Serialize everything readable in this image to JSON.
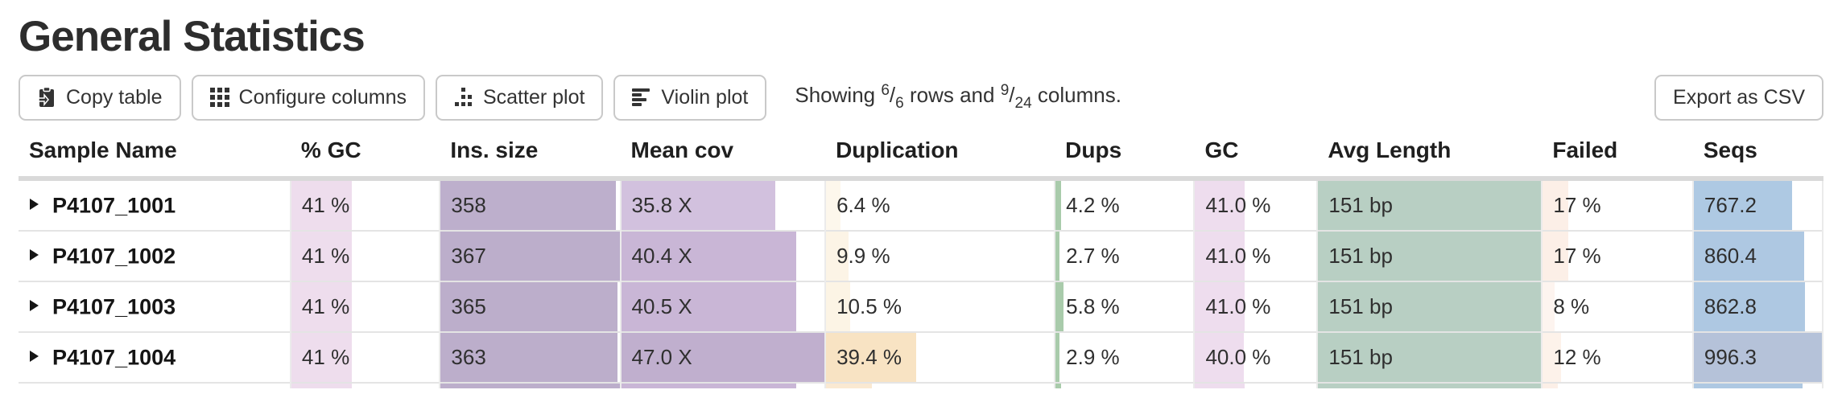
{
  "header": {
    "title": "General Statistics"
  },
  "toolbar": {
    "buttons": [
      {
        "key": "copy-table",
        "label": "Copy table",
        "icon": "clipboard-icon"
      },
      {
        "key": "configure-columns",
        "label": "Configure columns",
        "icon": "grid-icon"
      },
      {
        "key": "scatter-plot",
        "label": "Scatter plot",
        "icon": "scatter-dots-icon"
      },
      {
        "key": "violin-plot",
        "label": "Violin plot",
        "icon": "violin-bars-icon"
      }
    ],
    "showing": {
      "prefix": "Showing",
      "rows_shown": "6",
      "rows_total": "6",
      "rows_word": "rows and",
      "cols_shown": "9",
      "cols_total": "24",
      "cols_word": "columns."
    },
    "export_label": "Export as CSV"
  },
  "table": {
    "columns": [
      {
        "key": "sample",
        "label": "Sample Name"
      },
      {
        "key": "pct_gc",
        "label": "% GC"
      },
      {
        "key": "ins_size",
        "label": "Ins. size"
      },
      {
        "key": "mean_cov",
        "label": "Mean cov"
      },
      {
        "key": "duplication",
        "label": "Duplication"
      },
      {
        "key": "dups",
        "label": "Dups"
      },
      {
        "key": "gc",
        "label": "GC"
      },
      {
        "key": "avg_length",
        "label": "Avg Length"
      },
      {
        "key": "failed",
        "label": "Failed"
      },
      {
        "key": "seqs",
        "label": "Seqs"
      }
    ],
    "rows": [
      {
        "sample": "P4107_1001",
        "cells": [
          {
            "col": "pct_gc",
            "text": "41 %",
            "frac": 0.41,
            "bar": "#eedded"
          },
          {
            "col": "ins_size",
            "text": "358",
            "frac": 0.98,
            "bar": "#bdafcc"
          },
          {
            "col": "mean_cov",
            "text": "35.8 X",
            "frac": 0.76,
            "bar": "#d2c1de"
          },
          {
            "col": "duplication",
            "text": "6.4 %",
            "frac": 0.064,
            "bar": "#fdf7ec"
          },
          {
            "col": "dups",
            "text": "4.2 %",
            "frac": 0.042,
            "bar": "#a9cbab"
          },
          {
            "col": "gc",
            "text": "41.0 %",
            "frac": 0.41,
            "bar": "#eeddee"
          },
          {
            "col": "avg_length",
            "text": "151 bp",
            "frac": 1.0,
            "bar": "#b8cfc3"
          },
          {
            "col": "failed",
            "text": "17 %",
            "frac": 0.17,
            "bar": "#fcefe7"
          },
          {
            "col": "seqs",
            "text": "767.2",
            "frac": 0.77,
            "bar": "#aec9e3"
          }
        ]
      },
      {
        "sample": "P4107_1002",
        "cells": [
          {
            "col": "pct_gc",
            "text": "41 %",
            "frac": 0.41,
            "bar": "#eedded"
          },
          {
            "col": "ins_size",
            "text": "367",
            "frac": 1.0,
            "bar": "#bcaecb"
          },
          {
            "col": "mean_cov",
            "text": "40.4 X",
            "frac": 0.86,
            "bar": "#c9b6d6"
          },
          {
            "col": "duplication",
            "text": "9.9 %",
            "frac": 0.099,
            "bar": "#fcf4e6"
          },
          {
            "col": "dups",
            "text": "2.7 %",
            "frac": 0.027,
            "bar": "#a9cbab"
          },
          {
            "col": "gc",
            "text": "41.0 %",
            "frac": 0.41,
            "bar": "#eeddee"
          },
          {
            "col": "avg_length",
            "text": "151 bp",
            "frac": 1.0,
            "bar": "#b8cfc3"
          },
          {
            "col": "failed",
            "text": "17 %",
            "frac": 0.17,
            "bar": "#fcefe7"
          },
          {
            "col": "seqs",
            "text": "860.4",
            "frac": 0.86,
            "bar": "#aec8e2"
          }
        ]
      },
      {
        "sample": "P4107_1003",
        "cells": [
          {
            "col": "pct_gc",
            "text": "41 %",
            "frac": 0.41,
            "bar": "#eedded"
          },
          {
            "col": "ins_size",
            "text": "365",
            "frac": 0.99,
            "bar": "#bcaecb"
          },
          {
            "col": "mean_cov",
            "text": "40.5 X",
            "frac": 0.86,
            "bar": "#c9b6d6"
          },
          {
            "col": "duplication",
            "text": "10.5 %",
            "frac": 0.105,
            "bar": "#fcf4e5"
          },
          {
            "col": "dups",
            "text": "5.8 %",
            "frac": 0.058,
            "bar": "#a9cbab"
          },
          {
            "col": "gc",
            "text": "41.0 %",
            "frac": 0.41,
            "bar": "#eeddee"
          },
          {
            "col": "avg_length",
            "text": "151 bp",
            "frac": 1.0,
            "bar": "#b8cfc3"
          },
          {
            "col": "failed",
            "text": "8 %",
            "frac": 0.08,
            "bar": "#fdf4ef"
          },
          {
            "col": "seqs",
            "text": "862.8",
            "frac": 0.87,
            "bar": "#aec8e2"
          }
        ]
      },
      {
        "sample": "P4107_1004",
        "cells": [
          {
            "col": "pct_gc",
            "text": "41 %",
            "frac": 0.41,
            "bar": "#eedded"
          },
          {
            "col": "ins_size",
            "text": "363",
            "frac": 0.99,
            "bar": "#bcaecb"
          },
          {
            "col": "mean_cov",
            "text": "47.0 X",
            "frac": 1.0,
            "bar": "#c0afce"
          },
          {
            "col": "duplication",
            "text": "39.4 %",
            "frac": 0.394,
            "bar": "#f8e3c3"
          },
          {
            "col": "dups",
            "text": "2.9 %",
            "frac": 0.029,
            "bar": "#a9cbab"
          },
          {
            "col": "gc",
            "text": "40.0 %",
            "frac": 0.4,
            "bar": "#eeddee"
          },
          {
            "col": "avg_length",
            "text": "151 bp",
            "frac": 1.0,
            "bar": "#b8cfc3"
          },
          {
            "col": "failed",
            "text": "12 %",
            "frac": 0.12,
            "bar": "#fdf2ea"
          },
          {
            "col": "seqs",
            "text": "996.3",
            "frac": 1.0,
            "bar": "#b5c2d9"
          }
        ]
      }
    ],
    "partial_row": {
      "cells": [
        {
          "col": "pct_gc",
          "frac": 0.41,
          "bar": "#eedded"
        },
        {
          "col": "ins_size",
          "frac": 1.0,
          "bar": "#bcaecb"
        },
        {
          "col": "mean_cov",
          "frac": 0.86,
          "bar": "#c9b6d6"
        },
        {
          "col": "duplication",
          "frac": 0.2,
          "bar": "#fae9d2"
        },
        {
          "col": "dups",
          "frac": 0.04,
          "bar": "#a9cbab"
        },
        {
          "col": "gc",
          "frac": 0.41,
          "bar": "#eeddee"
        },
        {
          "col": "avg_length",
          "frac": 1.0,
          "bar": "#b8cfc3"
        },
        {
          "col": "failed",
          "frac": 0.1,
          "bar": "#fcefe7"
        },
        {
          "col": "seqs",
          "frac": 0.85,
          "bar": "#aec8e2"
        }
      ]
    }
  }
}
